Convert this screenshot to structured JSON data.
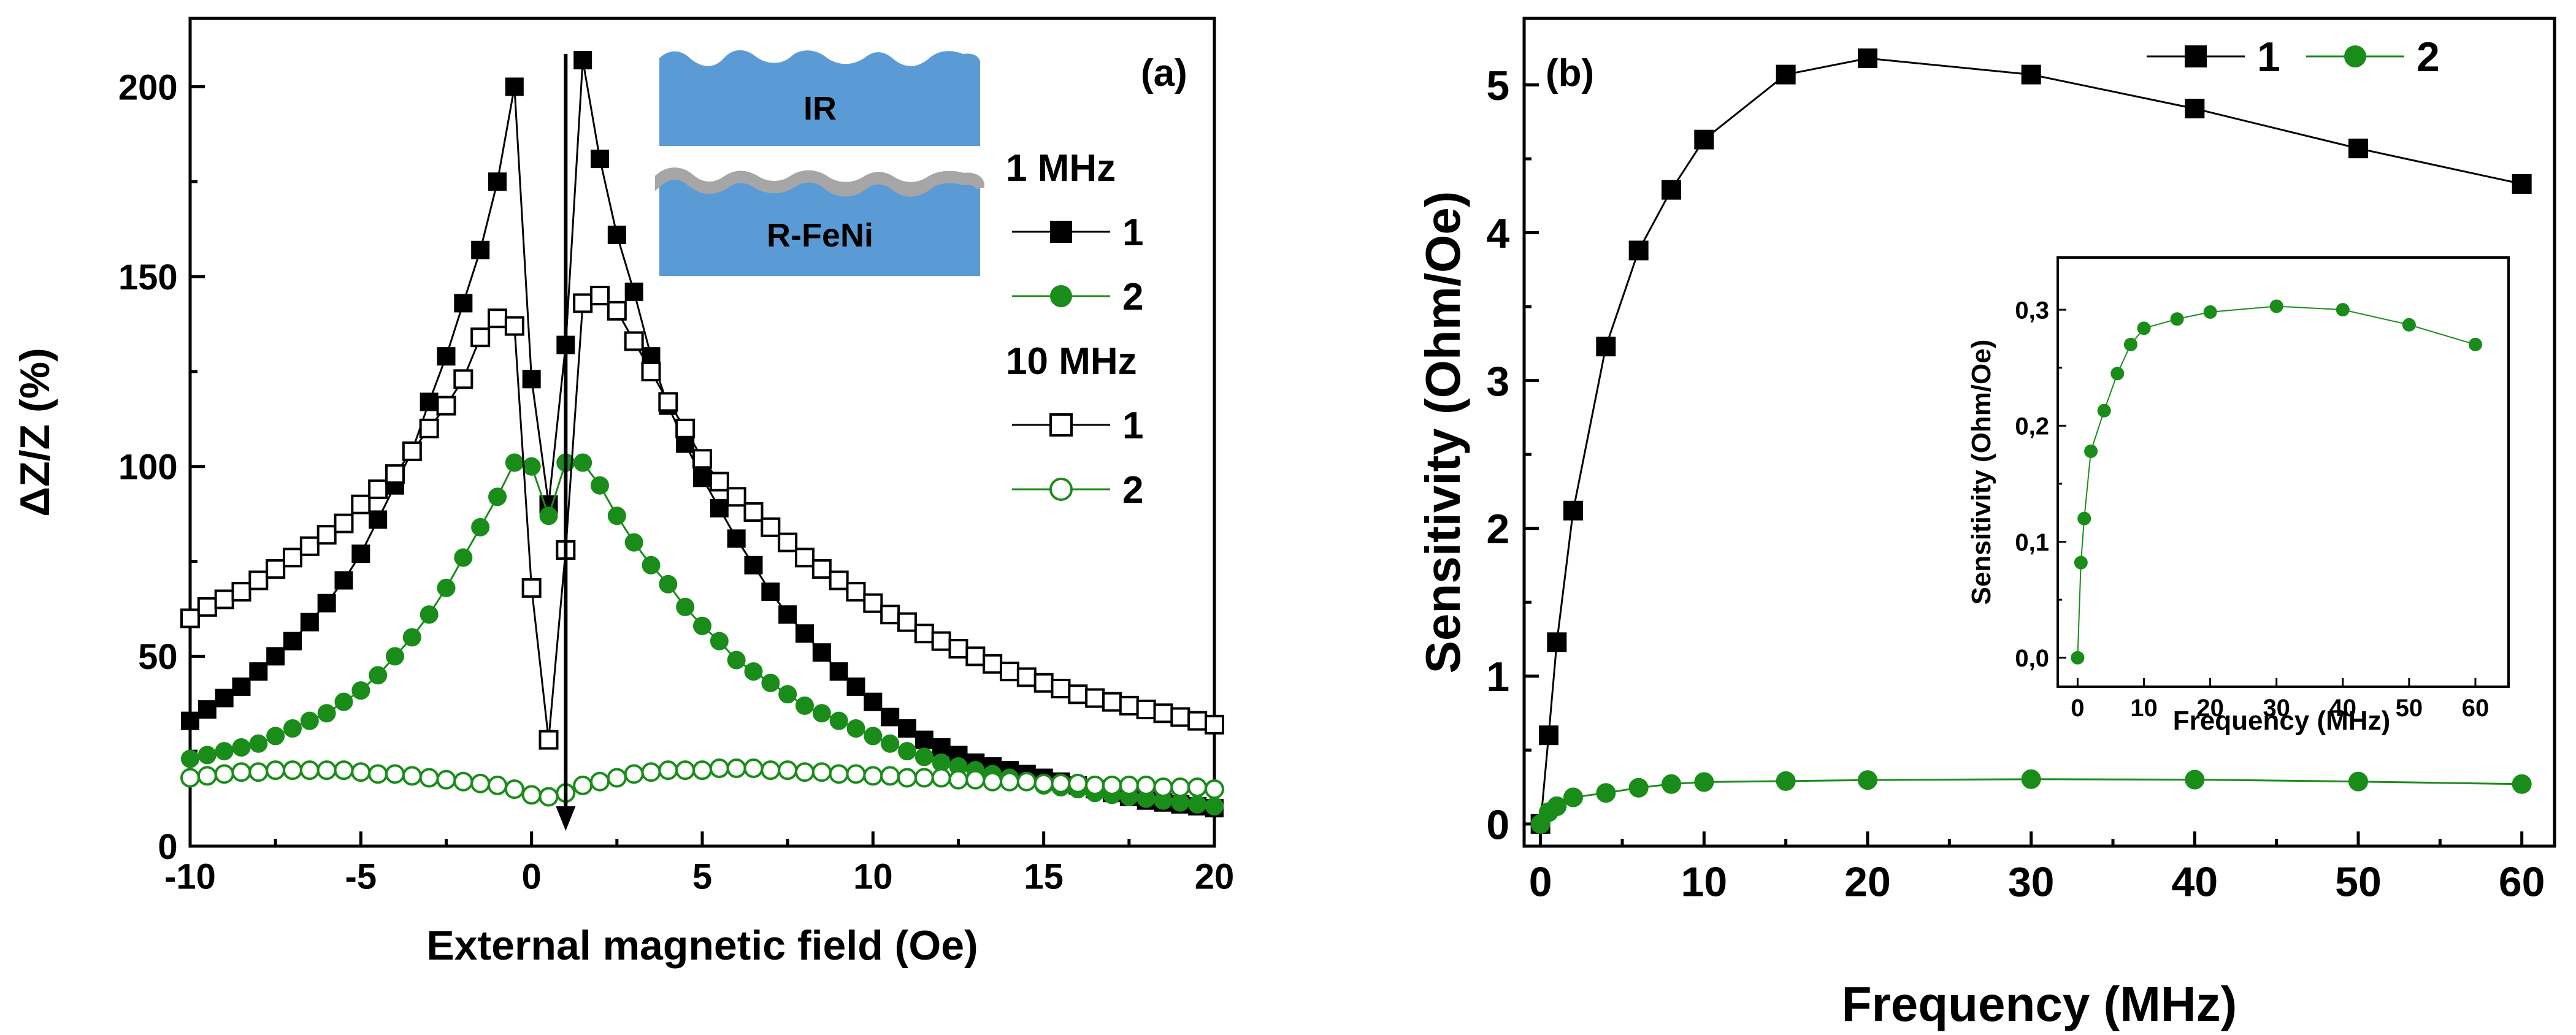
{
  "chart_data": [
    {
      "id": "a",
      "type": "line",
      "panel_label": "(a)",
      "xlabel": "External magnetic field (Oe)",
      "ylabel": "ΔZ/Z (%)",
      "xlim": [
        -10,
        20
      ],
      "ylim": [
        0,
        218
      ],
      "xticks": [
        -10,
        -5,
        0,
        5,
        10,
        15,
        20
      ],
      "yticks": [
        0,
        50,
        100,
        150,
        200
      ],
      "grid": false,
      "legend_position": "right",
      "legend_groups": [
        {
          "title": "1 MHz",
          "entries": [
            {
              "label": "1",
              "series": 0
            },
            {
              "label": "2",
              "series": 1
            }
          ]
        },
        {
          "title": "10 MHz",
          "entries": [
            {
              "label": "1",
              "series": 2
            },
            {
              "label": "2",
              "series": 3
            }
          ]
        }
      ],
      "inset_labels": [
        "IR",
        "R-FeNi"
      ],
      "arrow_x": 1,
      "series": [
        {
          "color": "#000000",
          "marker": "square-filled",
          "x": [
            -10,
            -9.5,
            -9,
            -8.5,
            -8,
            -7.5,
            -7,
            -6.5,
            -6,
            -5.5,
            -5,
            -4.5,
            -4,
            -3.5,
            -3,
            -2.5,
            -2,
            -1.5,
            -1,
            -0.5,
            0,
            0.5,
            1,
            1.5,
            2,
            2.5,
            3,
            3.5,
            4,
            4.5,
            5,
            5.5,
            6,
            6.5,
            7,
            7.5,
            8,
            8.5,
            9,
            9.5,
            10,
            10.5,
            11,
            11.5,
            12,
            12.5,
            13,
            13.5,
            14,
            14.5,
            15,
            15.5,
            16,
            16.5,
            17,
            17.5,
            18,
            18.5,
            19,
            19.5,
            20
          ],
          "y": [
            33,
            36,
            39,
            42,
            46,
            50,
            54,
            59,
            64,
            70,
            77,
            86,
            95,
            104,
            117,
            129,
            143,
            157,
            175,
            200,
            123,
            90,
            132,
            207,
            181,
            161,
            146,
            129,
            116,
            106,
            97,
            89,
            81,
            74,
            67,
            61,
            56,
            51,
            46,
            42,
            38,
            34,
            31,
            28,
            26,
            24,
            22,
            21,
            20,
            19,
            18,
            17,
            16,
            15,
            14,
            13,
            12,
            11.5,
            11,
            10.5,
            10
          ]
        },
        {
          "color": "#1a8c1a",
          "marker": "circle-filled",
          "x": [
            -10,
            -9.5,
            -9,
            -8.5,
            -8,
            -7.5,
            -7,
            -6.5,
            -6,
            -5.5,
            -5,
            -4.5,
            -4,
            -3.5,
            -3,
            -2.5,
            -2,
            -1.5,
            -1,
            -0.5,
            0,
            0.5,
            1,
            1.5,
            2,
            2.5,
            3,
            3.5,
            4,
            4.5,
            5,
            5.5,
            6,
            6.5,
            7,
            7.5,
            8,
            8.5,
            9,
            9.5,
            10,
            10.5,
            11,
            11.5,
            12,
            12.5,
            13,
            13.5,
            14,
            14.5,
            15,
            15.5,
            16,
            16.5,
            17,
            17.5,
            18,
            18.5,
            19,
            19.5,
            20
          ],
          "y": [
            23,
            24,
            25,
            26,
            27,
            29,
            31,
            33,
            35,
            38,
            41,
            45,
            50,
            55,
            61,
            68,
            76,
            84,
            92,
            101,
            100,
            87,
            101,
            101,
            95,
            87,
            80,
            74,
            69,
            63,
            58,
            54,
            49,
            46,
            43,
            40,
            37,
            35,
            33,
            31,
            29,
            27,
            25,
            23.5,
            22,
            21,
            20,
            19,
            18,
            17,
            16,
            15.5,
            15,
            14,
            13.5,
            13,
            12.5,
            12,
            11.5,
            11,
            10.5
          ]
        },
        {
          "color": "#000000",
          "marker": "square-open",
          "x": [
            -10,
            -9.5,
            -9,
            -8.5,
            -8,
            -7.5,
            -7,
            -6.5,
            -6,
            -5.5,
            -5,
            -4.5,
            -4,
            -3.5,
            -3,
            -2.5,
            -2,
            -1.5,
            -1,
            -0.5,
            0,
            0.5,
            1,
            1.5,
            2,
            2.5,
            3,
            3.5,
            4,
            4.5,
            5,
            5.5,
            6,
            6.5,
            7,
            7.5,
            8,
            8.5,
            9,
            9.5,
            10,
            10.5,
            11,
            11.5,
            12,
            12.5,
            13,
            13.5,
            14,
            14.5,
            15,
            15.5,
            16,
            16.5,
            17,
            17.5,
            18,
            18.5,
            19,
            19.5,
            20
          ],
          "y": [
            60,
            63,
            65,
            67,
            70,
            73,
            76,
            79,
            82,
            85,
            90,
            94,
            98,
            104,
            110,
            116,
            123,
            134,
            139,
            137,
            68,
            28,
            78,
            143,
            145,
            141,
            133,
            125,
            117,
            110,
            102,
            96,
            92,
            88,
            84,
            80,
            76,
            73,
            70,
            67,
            64,
            61,
            59,
            56,
            54,
            52,
            50,
            48,
            46,
            44.5,
            43,
            41.5,
            40,
            39,
            38,
            37,
            36,
            35,
            34,
            33,
            32
          ]
        },
        {
          "color": "#1a8c1a",
          "marker": "circle-open",
          "x": [
            -10,
            -9.5,
            -9,
            -8.5,
            -8,
            -7.5,
            -7,
            -6.5,
            -6,
            -5.5,
            -5,
            -4.5,
            -4,
            -3.5,
            -3,
            -2.5,
            -2,
            -1.5,
            -1,
            -0.5,
            0,
            0.5,
            1,
            1.5,
            2,
            2.5,
            3,
            3.5,
            4,
            4.5,
            5,
            5.5,
            6,
            6.5,
            7,
            7.5,
            8,
            8.5,
            9,
            9.5,
            10,
            10.5,
            11,
            11.5,
            12,
            12.5,
            13,
            13.5,
            14,
            14.5,
            15,
            15.5,
            16,
            16.5,
            17,
            17.5,
            18,
            18.5,
            19,
            19.5,
            20
          ],
          "y": [
            18,
            18.5,
            19,
            19.5,
            19.5,
            20,
            20,
            20,
            20,
            20,
            19.5,
            19,
            19,
            18.5,
            18,
            17.5,
            17,
            16.5,
            16,
            15,
            13.5,
            13,
            14,
            16,
            17,
            18,
            19,
            19.5,
            20,
            20,
            20,
            20.5,
            20.5,
            20.5,
            20,
            20,
            19.5,
            19.5,
            19,
            19,
            18.5,
            18.5,
            18,
            18,
            18,
            17.5,
            17.5,
            17,
            17,
            17,
            16.5,
            16.5,
            16.5,
            16,
            16,
            16,
            16,
            15.5,
            15.5,
            15.5,
            15
          ]
        }
      ]
    },
    {
      "id": "b",
      "type": "line",
      "panel_label": "(b)",
      "xlabel": "Frequency (MHz)",
      "ylabel": "Sensitivity (Ohm/Oe)",
      "xlim": [
        -1,
        62
      ],
      "ylim": [
        -0.15,
        5.45
      ],
      "xticks": [
        0,
        10,
        20,
        30,
        40,
        50,
        60
      ],
      "yticks": [
        0,
        1,
        2,
        3,
        4,
        5
      ],
      "grid": false,
      "legend_position": "top-right",
      "series": [
        {
          "name": "1",
          "color": "#000000",
          "marker": "square-filled",
          "x": [
            0,
            0.5,
            1,
            2,
            4,
            6,
            8,
            10,
            15,
            20,
            30,
            40,
            50,
            60
          ],
          "y": [
            0,
            0.6,
            1.23,
            2.12,
            3.23,
            3.88,
            4.29,
            4.63,
            5.07,
            5.18,
            5.07,
            4.84,
            4.57,
            4.33
          ]
        },
        {
          "name": "2",
          "color": "#1a8c1a",
          "marker": "circle-filled",
          "x": [
            0,
            0.5,
            1,
            2,
            4,
            6,
            8,
            10,
            15,
            20,
            30,
            40,
            50,
            60
          ],
          "y": [
            0,
            0.08,
            0.12,
            0.18,
            0.21,
            0.245,
            0.27,
            0.284,
            0.29,
            0.297,
            0.303,
            0.3,
            0.287,
            0.27
          ]
        }
      ],
      "inset": {
        "xlabel": "Frequency  (MHz)",
        "ylabel": "Sensitivity (Ohm/Oe)",
        "xlim": [
          -3,
          65
        ],
        "ylim": [
          -0.025,
          0.345
        ],
        "xticks": [
          0,
          10,
          20,
          30,
          40,
          50,
          60
        ],
        "yticks": [
          0.0,
          0.1,
          0.2,
          0.3
        ],
        "ytick_labels": [
          "0,0",
          "0,1",
          "0,2",
          "0,3"
        ],
        "series": [
          {
            "color": "#1a8c1a",
            "marker": "circle-filled",
            "x": [
              0,
              0.5,
              1,
              2,
              4,
              6,
              8,
              10,
              15,
              20,
              30,
              40,
              50,
              60
            ],
            "y": [
              0,
              0.082,
              0.12,
              0.178,
              0.213,
              0.245,
              0.27,
              0.284,
              0.292,
              0.298,
              0.303,
              0.3,
              0.287,
              0.27
            ]
          }
        ]
      }
    }
  ]
}
